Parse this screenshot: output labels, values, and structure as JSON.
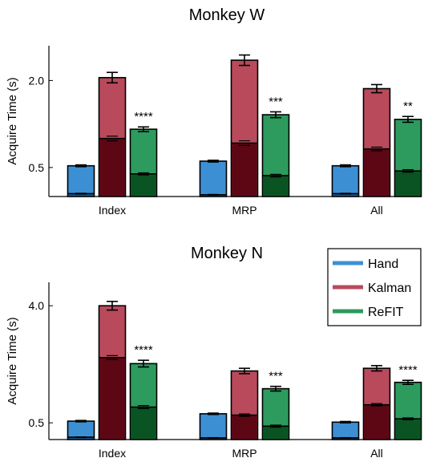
{
  "chart_data": [
    {
      "type": "bar",
      "title": "Monkey W",
      "xlabel": "",
      "ylabel": "Acquire Time (s)",
      "ylim": [
        0,
        2.6
      ],
      "yticks": [
        "0.5",
        "2.0"
      ],
      "ytick_values": [
        0.5,
        2.0
      ],
      "categories": [
        "Index",
        "MRP",
        "All"
      ],
      "series": [
        {
          "name": "Hand",
          "color": "#3d8fd4",
          "dark": "#1c4f86",
          "values": [
            0.53,
            0.61,
            0.53
          ],
          "errors": [
            0.015,
            0.015,
            0.015
          ],
          "inner": [
            0.05,
            0.03,
            0.05
          ]
        },
        {
          "name": "Kalman",
          "color": "#b84a5c",
          "dark": "#5d0715",
          "values": [
            2.05,
            2.35,
            1.86
          ],
          "errors": [
            0.09,
            0.09,
            0.07
          ],
          "inner": [
            1.0,
            0.92,
            0.82
          ]
        },
        {
          "name": "ReFIT",
          "color": "#2d9a5e",
          "dark": "#0a5423",
          "values": [
            1.16,
            1.41,
            1.33
          ],
          "errors": [
            0.04,
            0.05,
            0.05
          ],
          "inner": [
            0.39,
            0.36,
            0.44
          ]
        }
      ],
      "significance": [
        "****",
        "***",
        "**"
      ],
      "legend": false
    },
    {
      "type": "bar",
      "title": "Monkey N",
      "xlabel": "",
      "ylabel": "Acquire Time (s)",
      "ylim": [
        0,
        4.7
      ],
      "yticks": [
        "0.5",
        "4.0"
      ],
      "ytick_values": [
        0.5,
        4.0
      ],
      "categories": [
        "Index",
        "MRP",
        "All"
      ],
      "series": [
        {
          "name": "Hand",
          "color": "#3d8fd4",
          "dark": "#1c4f86",
          "values": [
            0.55,
            0.77,
            0.52
          ],
          "errors": [
            0.02,
            0.02,
            0.02
          ],
          "inner": [
            0.07,
            0.05,
            0.05
          ]
        },
        {
          "name": "Kalman",
          "color": "#b84a5c",
          "dark": "#5d0715",
          "values": [
            4.0,
            2.05,
            2.13
          ],
          "errors": [
            0.13,
            0.08,
            0.08
          ],
          "inner": [
            2.45,
            0.73,
            1.04
          ]
        },
        {
          "name": "ReFIT",
          "color": "#2d9a5e",
          "dark": "#0a5423",
          "values": [
            2.27,
            1.52,
            1.71
          ],
          "errors": [
            0.1,
            0.07,
            0.06
          ],
          "inner": [
            0.97,
            0.4,
            0.62
          ]
        }
      ],
      "significance": [
        "****",
        "***",
        "****"
      ],
      "legend": true,
      "legend_position": "top-right"
    }
  ]
}
